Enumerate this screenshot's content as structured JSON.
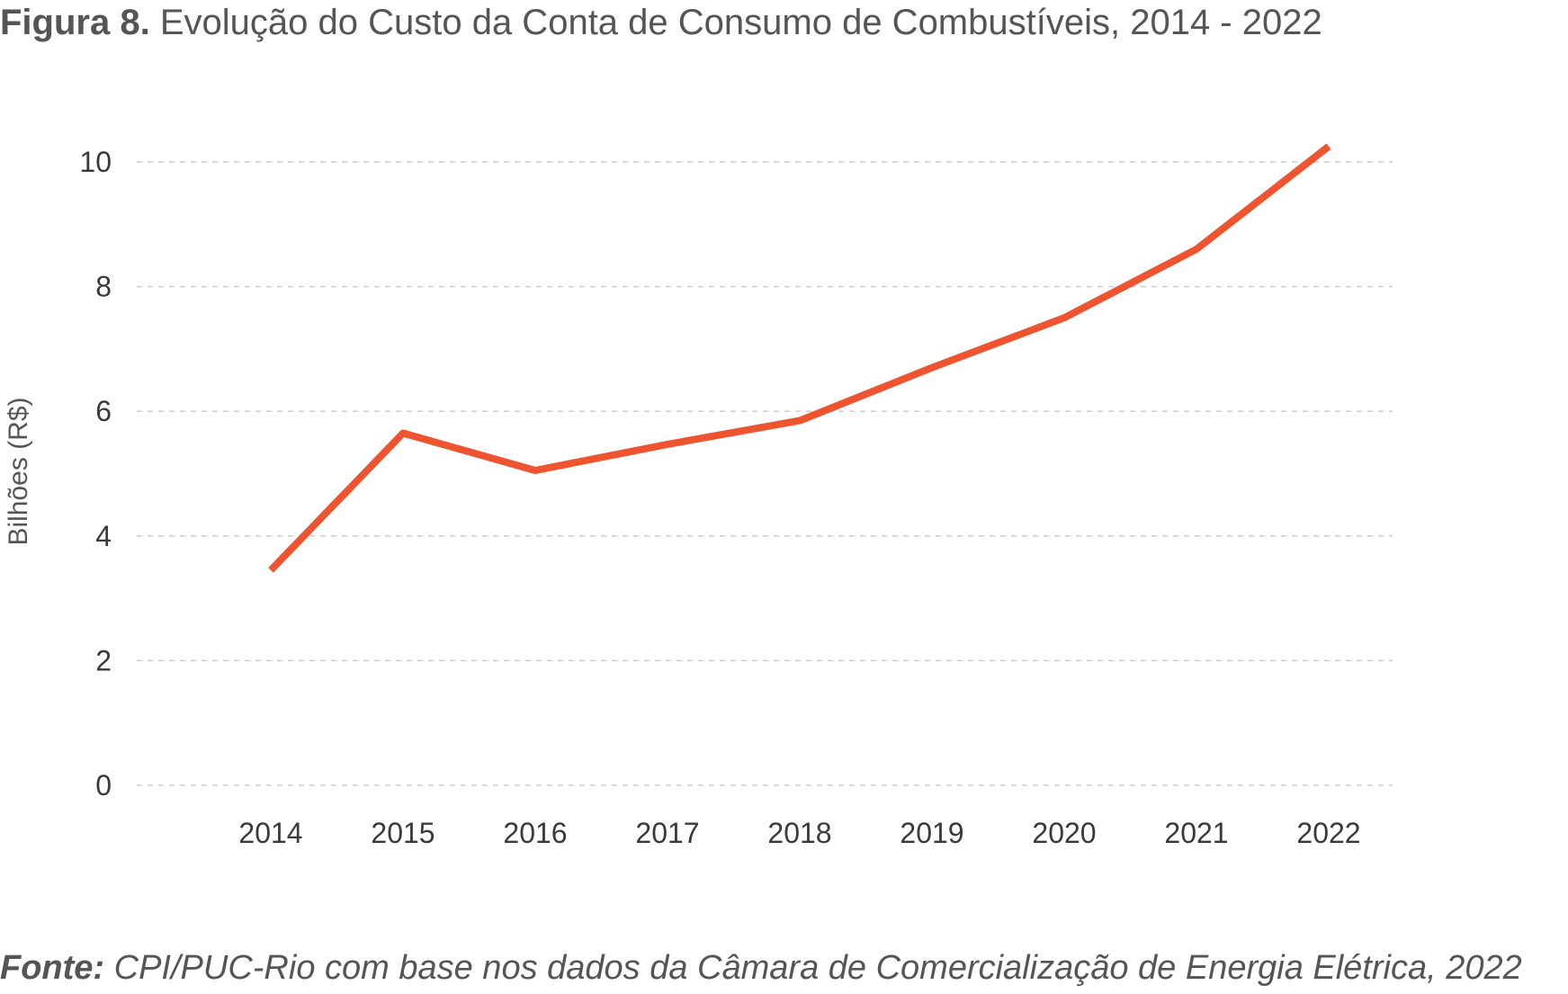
{
  "header": {
    "figure_label": "Figura 8.",
    "title": "Evolução do Custo da Conta de Consumo de Combustíveis, 2014 - 2022"
  },
  "footer": {
    "source_label": "Fonte:",
    "source_text": "CPI/PUC-Rio com base nos dados da Câmara de Comercialização de Energia Elétrica, 2022"
  },
  "colors": {
    "line": "#ee5430",
    "grid": "#cccccc",
    "text": "#3a3a3a"
  },
  "chart_data": {
    "type": "line",
    "title": "Evolução do Custo da Conta de Consumo de Combustíveis, 2014 - 2022",
    "xlabel": "",
    "ylabel": "Bilhões (R$)",
    "ylim": [
      0,
      10
    ],
    "yticks": [
      0,
      2,
      4,
      6,
      8,
      10
    ],
    "grid": true,
    "legend": "none",
    "categories": [
      "2014",
      "2015",
      "2016",
      "2017",
      "2018",
      "2019",
      "2020",
      "2021",
      "2022"
    ],
    "series": [
      {
        "values": [
          3.45,
          5.65,
          5.05,
          5.47,
          5.85,
          6.7,
          7.5,
          8.6,
          10.25
        ]
      }
    ]
  }
}
